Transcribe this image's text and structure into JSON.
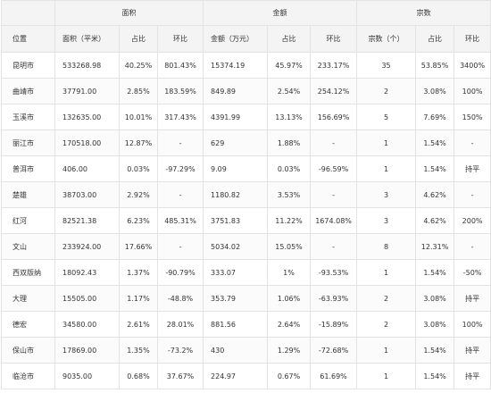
{
  "groups": [
    {
      "label": ""
    },
    {
      "label": "面积"
    },
    {
      "label": "金额"
    },
    {
      "label": "宗数"
    }
  ],
  "columns": [
    "位置",
    "面积（平米）",
    "占比",
    "环比",
    "金额（万元）",
    "占比",
    "环比",
    "宗数（个）",
    "占比",
    "环比"
  ],
  "rows": [
    [
      "昆明市",
      "533268.98",
      "40.25%",
      "801.43%",
      "15374.19",
      "45.97%",
      "233.17%",
      "35",
      "53.85%",
      "3400%"
    ],
    [
      "曲靖市",
      "37791.00",
      "2.85%",
      "183.59%",
      "849.89",
      "2.54%",
      "254.12%",
      "2",
      "3.08%",
      "100%"
    ],
    [
      "玉溪市",
      "132635.00",
      "10.01%",
      "317.43%",
      "4391.99",
      "13.13%",
      "156.69%",
      "5",
      "7.69%",
      "150%"
    ],
    [
      "丽江市",
      "170518.00",
      "12.87%",
      "-",
      "629",
      "1.88%",
      "-",
      "1",
      "1.54%",
      "-"
    ],
    [
      "普洱市",
      "406.00",
      "0.03%",
      "-97.29%",
      "9.09",
      "0.03%",
      "-96.59%",
      "1",
      "1.54%",
      "持平"
    ],
    [
      "楚雄",
      "38703.00",
      "2.92%",
      "-",
      "1180.82",
      "3.53%",
      "-",
      "3",
      "4.62%",
      "-"
    ],
    [
      "红河",
      "82521.38",
      "6.23%",
      "485.31%",
      "3751.83",
      "11.22%",
      "1674.08%",
      "3",
      "4.62%",
      "200%"
    ],
    [
      "文山",
      "233924.00",
      "17.66%",
      "-",
      "5034.02",
      "15.05%",
      "-",
      "8",
      "12.31%",
      "-"
    ],
    [
      "西双版纳",
      "18092.43",
      "1.37%",
      "-90.79%",
      "333.07",
      "1%",
      "-93.53%",
      "1",
      "1.54%",
      "-50%"
    ],
    [
      "大理",
      "15505.00",
      "1.17%",
      "-48.8%",
      "353.79",
      "1.06%",
      "-63.93%",
      "2",
      "3.08%",
      "持平"
    ],
    [
      "德宏",
      "34580.00",
      "2.61%",
      "28.01%",
      "881.56",
      "2.64%",
      "-15.89%",
      "2",
      "3.08%",
      "100%"
    ],
    [
      "保山市",
      "17869.00",
      "1.35%",
      "-73.2%",
      "430",
      "1.29%",
      "-72.68%",
      "1",
      "1.54%",
      "持平"
    ],
    [
      "临沧市",
      "9035.00",
      "0.68%",
      "37.67%",
      "224.97",
      "0.67%",
      "61.69%",
      "1",
      "1.54%",
      "持平"
    ]
  ]
}
